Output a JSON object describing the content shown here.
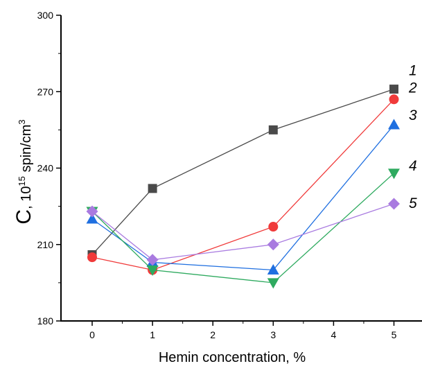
{
  "chart_data": {
    "type": "line",
    "xlabel": "Hemin concentration, %",
    "ylabel": {
      "prefix": "C",
      "sep": ", 10",
      "sup1": "15",
      "mid": " spin/cm",
      "sup2": "3"
    },
    "xlim": [
      -0.5,
      5.5
    ],
    "ylim": [
      180,
      300
    ],
    "xticks": [
      "0",
      "1",
      "2",
      "3",
      "4",
      "5"
    ],
    "yticks": [
      "180",
      "210",
      "240",
      "270",
      "300"
    ],
    "grid": false,
    "legend": "inline labels at right end of each series",
    "series": [
      {
        "name": "1",
        "color": "#4a4a4a",
        "marker": "square",
        "x": [
          0,
          1,
          3,
          5
        ],
        "y": [
          206,
          232,
          255,
          271
        ]
      },
      {
        "name": "2",
        "color": "#f03a3a",
        "marker": "circle",
        "x": [
          0,
          1,
          3,
          5
        ],
        "y": [
          205,
          200,
          217,
          267
        ]
      },
      {
        "name": "3",
        "color": "#1f6fe0",
        "marker": "triangle-up",
        "x": [
          0,
          1,
          3,
          5
        ],
        "y": [
          220,
          203,
          200,
          257
        ]
      },
      {
        "name": "4",
        "color": "#2eaa5f",
        "marker": "triangle-down",
        "x": [
          0,
          1,
          3,
          5
        ],
        "y": [
          223,
          200,
          195,
          238
        ]
      },
      {
        "name": "5",
        "color": "#a97be0",
        "marker": "diamond",
        "x": [
          0,
          1,
          3,
          5
        ],
        "y": [
          223,
          204,
          210,
          226
        ]
      }
    ]
  }
}
